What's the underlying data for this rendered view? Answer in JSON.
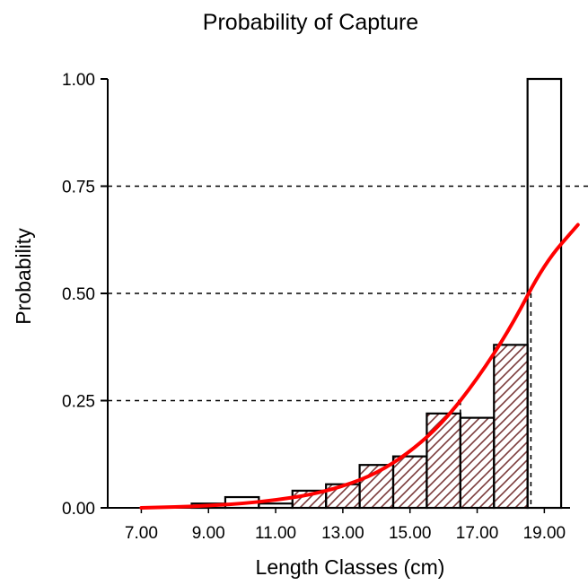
{
  "chart_data": {
    "type": "bar",
    "title": "Probability of Capture",
    "xlabel": "Length Classes (cm)",
    "ylabel": "Probability",
    "x_tick_labels": [
      "7.00",
      "9.00",
      "11.00",
      "13.00",
      "15.00",
      "17.00",
      "19.00"
    ],
    "x_ticks": [
      7,
      9,
      11,
      13,
      15,
      17,
      19
    ],
    "y_tick_labels": [
      "0.00",
      "0.25",
      "0.50",
      "0.75",
      "1.00"
    ],
    "y_ticks": [
      0,
      0.25,
      0.5,
      0.75,
      1.0
    ],
    "xlim": [
      6.0,
      20.3
    ],
    "ylim": [
      0,
      1.0
    ],
    "bar_width": 1,
    "bars": [
      {
        "x": 7.0,
        "value": 0.0,
        "hatched": false
      },
      {
        "x": 8.0,
        "value": 0.0,
        "hatched": false
      },
      {
        "x": 9.0,
        "value": 0.01,
        "hatched": false
      },
      {
        "x": 10.0,
        "value": 0.025,
        "hatched": false
      },
      {
        "x": 11.0,
        "value": 0.01,
        "hatched": false
      },
      {
        "x": 12.0,
        "value": 0.04,
        "hatched": true
      },
      {
        "x": 13.0,
        "value": 0.055,
        "hatched": true
      },
      {
        "x": 14.0,
        "value": 0.1,
        "hatched": true
      },
      {
        "x": 15.0,
        "value": 0.12,
        "hatched": true
      },
      {
        "x": 16.0,
        "value": 0.22,
        "hatched": true
      },
      {
        "x": 17.0,
        "value": 0.21,
        "hatched": true
      },
      {
        "x": 18.0,
        "value": 0.38,
        "hatched": true
      },
      {
        "x": 19.0,
        "value": 1.0,
        "hatched": false
      }
    ],
    "reference_lines": [
      {
        "y": 0.25,
        "x_end": 16.5
      },
      {
        "y": 0.5,
        "x_end": 18.6
      },
      {
        "y": 0.75,
        "x_end": 20.3
      }
    ],
    "curve": {
      "x": [
        7.0,
        8.0,
        9.0,
        10.0,
        11.0,
        12.0,
        13.0,
        14.0,
        15.0,
        16.0,
        17.0,
        18.0,
        19.0,
        20.0
      ],
      "y": [
        0.0,
        0.002,
        0.005,
        0.01,
        0.018,
        0.03,
        0.05,
        0.08,
        0.13,
        0.2,
        0.3,
        0.42,
        0.57,
        0.66
      ]
    },
    "grid": false,
    "colors": {
      "curve": "#ff0000",
      "hatch": "#7a3b3b",
      "axis": "#000000"
    }
  }
}
